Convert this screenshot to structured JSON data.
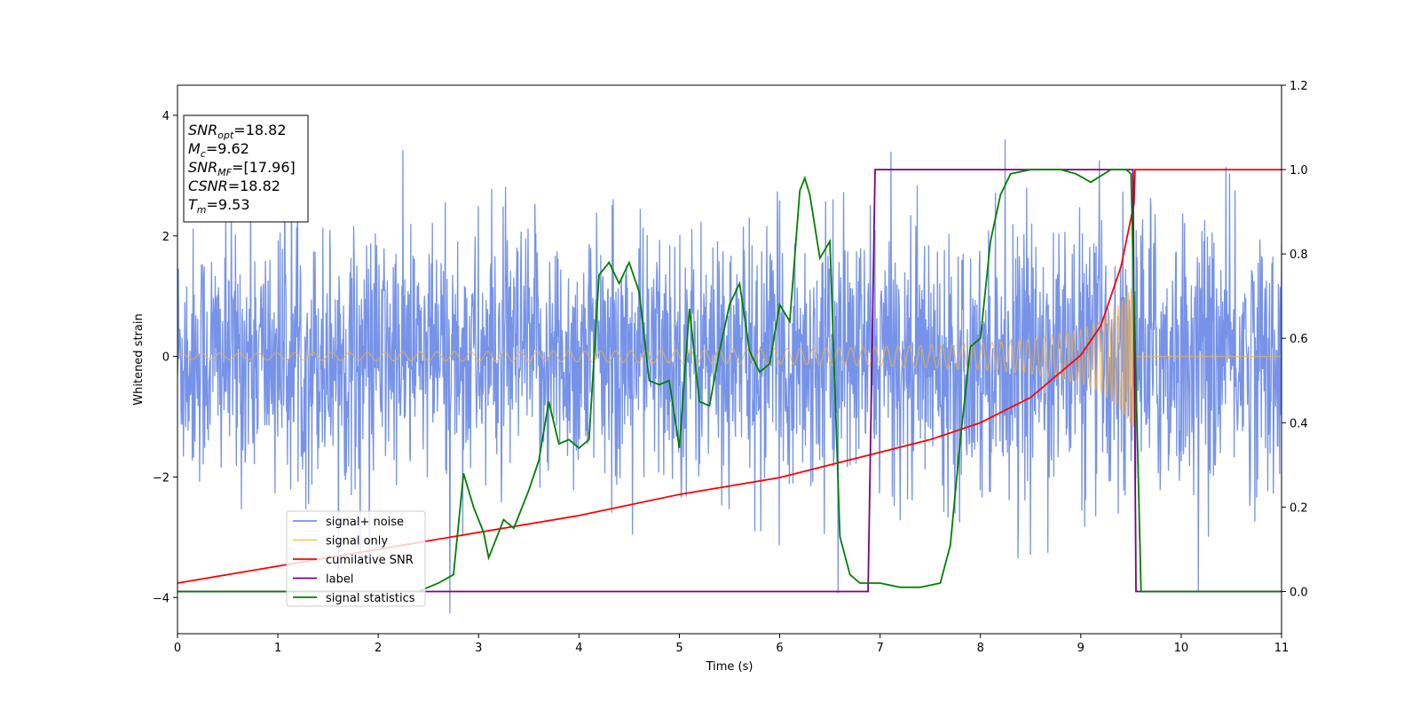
{
  "chart_data": {
    "type": "line",
    "title": "",
    "xlabel": "Time (s)",
    "ylabel": "Whitened strain",
    "xlim": [
      0,
      11
    ],
    "ylim_left": [
      -4.6,
      4.5
    ],
    "ylim_right": [
      -0.1,
      1.2
    ],
    "x_ticks": [
      0,
      1,
      2,
      3,
      4,
      5,
      6,
      7,
      8,
      9,
      10,
      11
    ],
    "y_ticks_left": [
      -4,
      -2,
      0,
      2,
      4
    ],
    "y_ticks_left_labels": [
      "−4",
      "−2",
      "0",
      "2",
      "4"
    ],
    "y_ticks_right": [
      0.0,
      0.2,
      0.4,
      0.6,
      0.8,
      1.0,
      1.2
    ],
    "y_ticks_right_labels": [
      "0.0",
      "0.2",
      "0.4",
      "0.6",
      "0.8",
      "1.0",
      "1.2"
    ],
    "legend_position": "lower-left",
    "annotation": {
      "lines": [
        {
          "sym": "SNR",
          "sub": "opt",
          "val": "=18.82"
        },
        {
          "sym": "M",
          "sub": "c",
          "val": "=9.62"
        },
        {
          "sym": "SNR",
          "sub": "MF",
          "val": "=[17.96]"
        },
        {
          "sym": "CSNR",
          "sub": "",
          "val": "=18.82"
        },
        {
          "sym": "T",
          "sub": "m",
          "val": "=9.53"
        }
      ]
    },
    "series": [
      {
        "name": "signal+ noise",
        "color": "#4169e1",
        "axis": "left",
        "kind": "noise",
        "envelope_x": [
          0,
          1,
          2,
          3,
          4,
          5,
          6,
          7,
          8,
          9,
          9.53,
          11
        ],
        "envelope_amp": [
          1.9,
          1.9,
          1.9,
          1.9,
          1.9,
          1.9,
          1.9,
          1.9,
          1.9,
          2.0,
          2.2,
          1.9
        ]
      },
      {
        "name": "signal only",
        "color": "#f5b041",
        "axis": "left",
        "kind": "chirp",
        "merger_time": 9.53,
        "envelope_x": [
          0,
          2,
          4,
          6,
          7,
          8,
          8.5,
          9,
          9.2,
          9.4,
          9.53
        ],
        "envelope_amp": [
          0.05,
          0.07,
          0.09,
          0.13,
          0.16,
          0.22,
          0.29,
          0.45,
          0.6,
          0.9,
          1.2
        ]
      },
      {
        "name": "cumilative SNR",
        "color": "#ff0000",
        "axis": "right",
        "x": [
          0,
          1,
          2,
          3,
          4,
          5,
          6,
          7,
          7.5,
          8,
          8.5,
          9,
          9.2,
          9.4,
          9.53,
          9.54,
          11
        ],
        "values": [
          0.02,
          0.06,
          0.1,
          0.14,
          0.18,
          0.23,
          0.27,
          0.33,
          0.36,
          0.4,
          0.46,
          0.56,
          0.63,
          0.77,
          0.92,
          1.0,
          1.0
        ]
      },
      {
        "name": "label",
        "color": "#800080",
        "axis": "right",
        "x": [
          0,
          6.88,
          6.95,
          9.52,
          9.55,
          11
        ],
        "values": [
          0.0,
          0.0,
          1.0,
          1.0,
          0.0,
          0.0
        ]
      },
      {
        "name": "signal statistics",
        "color": "#008000",
        "axis": "right",
        "x": [
          0,
          0.5,
          1,
          1.5,
          2,
          2.4,
          2.6,
          2.75,
          2.85,
          2.95,
          3.05,
          3.1,
          3.25,
          3.35,
          3.5,
          3.6,
          3.7,
          3.8,
          3.9,
          4.0,
          4.1,
          4.2,
          4.3,
          4.4,
          4.5,
          4.6,
          4.7,
          4.8,
          4.9,
          5.0,
          5.1,
          5.2,
          5.3,
          5.4,
          5.5,
          5.6,
          5.7,
          5.8,
          5.9,
          6.0,
          6.1,
          6.2,
          6.25,
          6.3,
          6.4,
          6.5,
          6.6,
          6.7,
          6.8,
          6.9,
          7.0,
          7.2,
          7.4,
          7.6,
          7.7,
          7.8,
          7.9,
          8.0,
          8.1,
          8.2,
          8.3,
          8.5,
          8.8,
          8.95,
          9.1,
          9.3,
          9.45,
          9.5,
          9.6,
          11
        ],
        "values": [
          0.0,
          0.0,
          0.0,
          0.0,
          0.0,
          0.0,
          0.02,
          0.04,
          0.28,
          0.2,
          0.14,
          0.08,
          0.17,
          0.15,
          0.24,
          0.31,
          0.45,
          0.35,
          0.36,
          0.34,
          0.36,
          0.75,
          0.78,
          0.73,
          0.78,
          0.71,
          0.5,
          0.49,
          0.5,
          0.34,
          0.67,
          0.45,
          0.44,
          0.57,
          0.68,
          0.73,
          0.57,
          0.52,
          0.54,
          0.68,
          0.64,
          0.95,
          0.98,
          0.94,
          0.79,
          0.83,
          0.13,
          0.04,
          0.02,
          0.02,
          0.02,
          0.01,
          0.01,
          0.02,
          0.11,
          0.36,
          0.58,
          0.6,
          0.83,
          0.94,
          0.99,
          1.0,
          1.0,
          0.99,
          0.97,
          1.0,
          1.0,
          0.99,
          0.0,
          0.0
        ]
      }
    ]
  }
}
